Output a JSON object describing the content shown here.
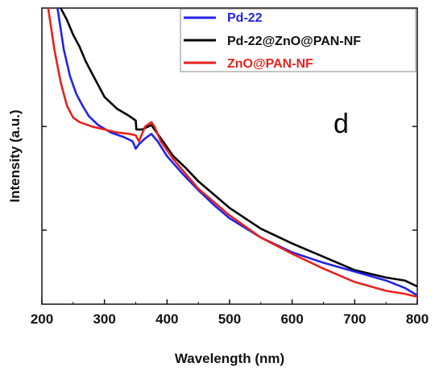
{
  "chart_data": {
    "type": "line",
    "title": "",
    "panel_label": "d",
    "xlabel": "Wavelength (nm)",
    "ylabel": "Intensity (a.u.)",
    "xlim": [
      200,
      800
    ],
    "ylim": [
      0,
      100
    ],
    "x_ticks": [
      200,
      300,
      400,
      500,
      600,
      700,
      800
    ],
    "x_tick_labels": [
      "200",
      "300",
      "400",
      "500",
      "600",
      "700",
      "800"
    ],
    "y_ticks_unlabeled": [
      25,
      60
    ],
    "grid": false,
    "legend_position": "top-right",
    "series": [
      {
        "name": "Pd-22",
        "color": "#2323e6",
        "x": [
          225,
          235,
          245,
          255,
          265,
          275,
          290,
          310,
          330,
          345,
          350,
          355,
          365,
          375,
          385,
          400,
          425,
          450,
          475,
          500,
          550,
          600,
          650,
          700,
          750,
          780,
          800
        ],
        "y": [
          100,
          86,
          77,
          71,
          67,
          63.5,
          60.5,
          58,
          56.5,
          55,
          52.5,
          54,
          56,
          57.5,
          55,
          50,
          44,
          38.5,
          33.5,
          29,
          22.5,
          17.5,
          14,
          11,
          8,
          5.5,
          3
        ]
      },
      {
        "name": "Pd-22@ZnO@PAN-NF",
        "color": "#000000",
        "x": [
          230,
          240,
          250,
          260,
          270,
          280,
          290,
          300,
          320,
          340,
          350,
          351,
          360,
          375,
          390,
          410,
          430,
          450,
          475,
          500,
          550,
          600,
          650,
          700,
          750,
          780,
          800
        ],
        "y": [
          100,
          96,
          91,
          87,
          82,
          78,
          74,
          70,
          66,
          63.5,
          62,
          59,
          59,
          60.5,
          56,
          50,
          46,
          41.5,
          37,
          32.5,
          25.5,
          20.5,
          16,
          11.5,
          9,
          8,
          6
        ]
      },
      {
        "name": "ZnO@PAN-NF",
        "color": "#e6231e",
        "x": [
          210,
          220,
          230,
          240,
          250,
          260,
          280,
          300,
          320,
          340,
          350,
          355,
          365,
          375,
          380,
          390,
          410,
          430,
          450,
          475,
          500,
          550,
          600,
          650,
          700,
          750,
          780,
          800
        ],
        "y": [
          100,
          86,
          75,
          67,
          63,
          61.5,
          60,
          59,
          58,
          57.5,
          57,
          55,
          60,
          61.5,
          60,
          55,
          49,
          44,
          39,
          34.5,
          30,
          22.5,
          17,
          12,
          7.5,
          4.5,
          3.5,
          2.5
        ]
      }
    ]
  }
}
